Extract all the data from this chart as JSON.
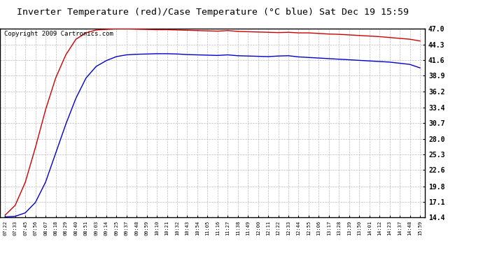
{
  "title": "Inverter Temperature (red)/Case Temperature (°C blue) Sat Dec 19 15:59",
  "copyright": "Copyright 2009 Cartronics.com",
  "y_ticks": [
    14.4,
    17.1,
    19.8,
    22.6,
    25.3,
    28.0,
    30.7,
    33.4,
    36.2,
    38.9,
    41.6,
    44.3,
    47.0
  ],
  "x_labels": [
    "07:22",
    "07:33",
    "07:45",
    "07:56",
    "08:07",
    "08:18",
    "08:29",
    "08:40",
    "08:51",
    "09:03",
    "09:14",
    "09:25",
    "09:37",
    "09:48",
    "09:59",
    "10:10",
    "10:21",
    "10:32",
    "10:43",
    "10:54",
    "11:05",
    "11:16",
    "11:27",
    "11:38",
    "11:49",
    "12:00",
    "12:11",
    "12:22",
    "12:33",
    "12:44",
    "12:55",
    "13:06",
    "13:17",
    "13:28",
    "13:39",
    "13:50",
    "14:01",
    "14:12",
    "14:23",
    "14:37",
    "14:48",
    "15:59"
  ],
  "red_data": [
    14.8,
    16.5,
    20.5,
    26.5,
    33.0,
    38.5,
    42.5,
    45.2,
    46.3,
    46.8,
    46.9,
    47.0,
    47.0,
    46.95,
    46.9,
    46.85,
    46.85,
    46.8,
    46.75,
    46.7,
    46.65,
    46.6,
    46.7,
    46.55,
    46.5,
    46.45,
    46.4,
    46.35,
    46.4,
    46.3,
    46.3,
    46.2,
    46.1,
    46.05,
    45.95,
    45.85,
    45.75,
    45.65,
    45.5,
    45.35,
    45.2,
    44.9
  ],
  "blue_data": [
    14.5,
    14.6,
    15.2,
    17.0,
    20.5,
    25.5,
    30.5,
    35.0,
    38.5,
    40.5,
    41.5,
    42.2,
    42.5,
    42.6,
    42.65,
    42.7,
    42.7,
    42.65,
    42.55,
    42.5,
    42.45,
    42.4,
    42.5,
    42.35,
    42.3,
    42.25,
    42.2,
    42.3,
    42.35,
    42.15,
    42.05,
    41.95,
    41.85,
    41.75,
    41.65,
    41.55,
    41.45,
    41.35,
    41.25,
    41.05,
    40.85,
    40.25
  ],
  "red_color": "#cc0000",
  "blue_color": "#0000cc",
  "bg_color": "#ffffff",
  "grid_color": "#bbbbbb",
  "title_fontsize": 9.5,
  "copyright_fontsize": 6.5,
  "tick_fontsize": 7,
  "xtick_fontsize": 5
}
